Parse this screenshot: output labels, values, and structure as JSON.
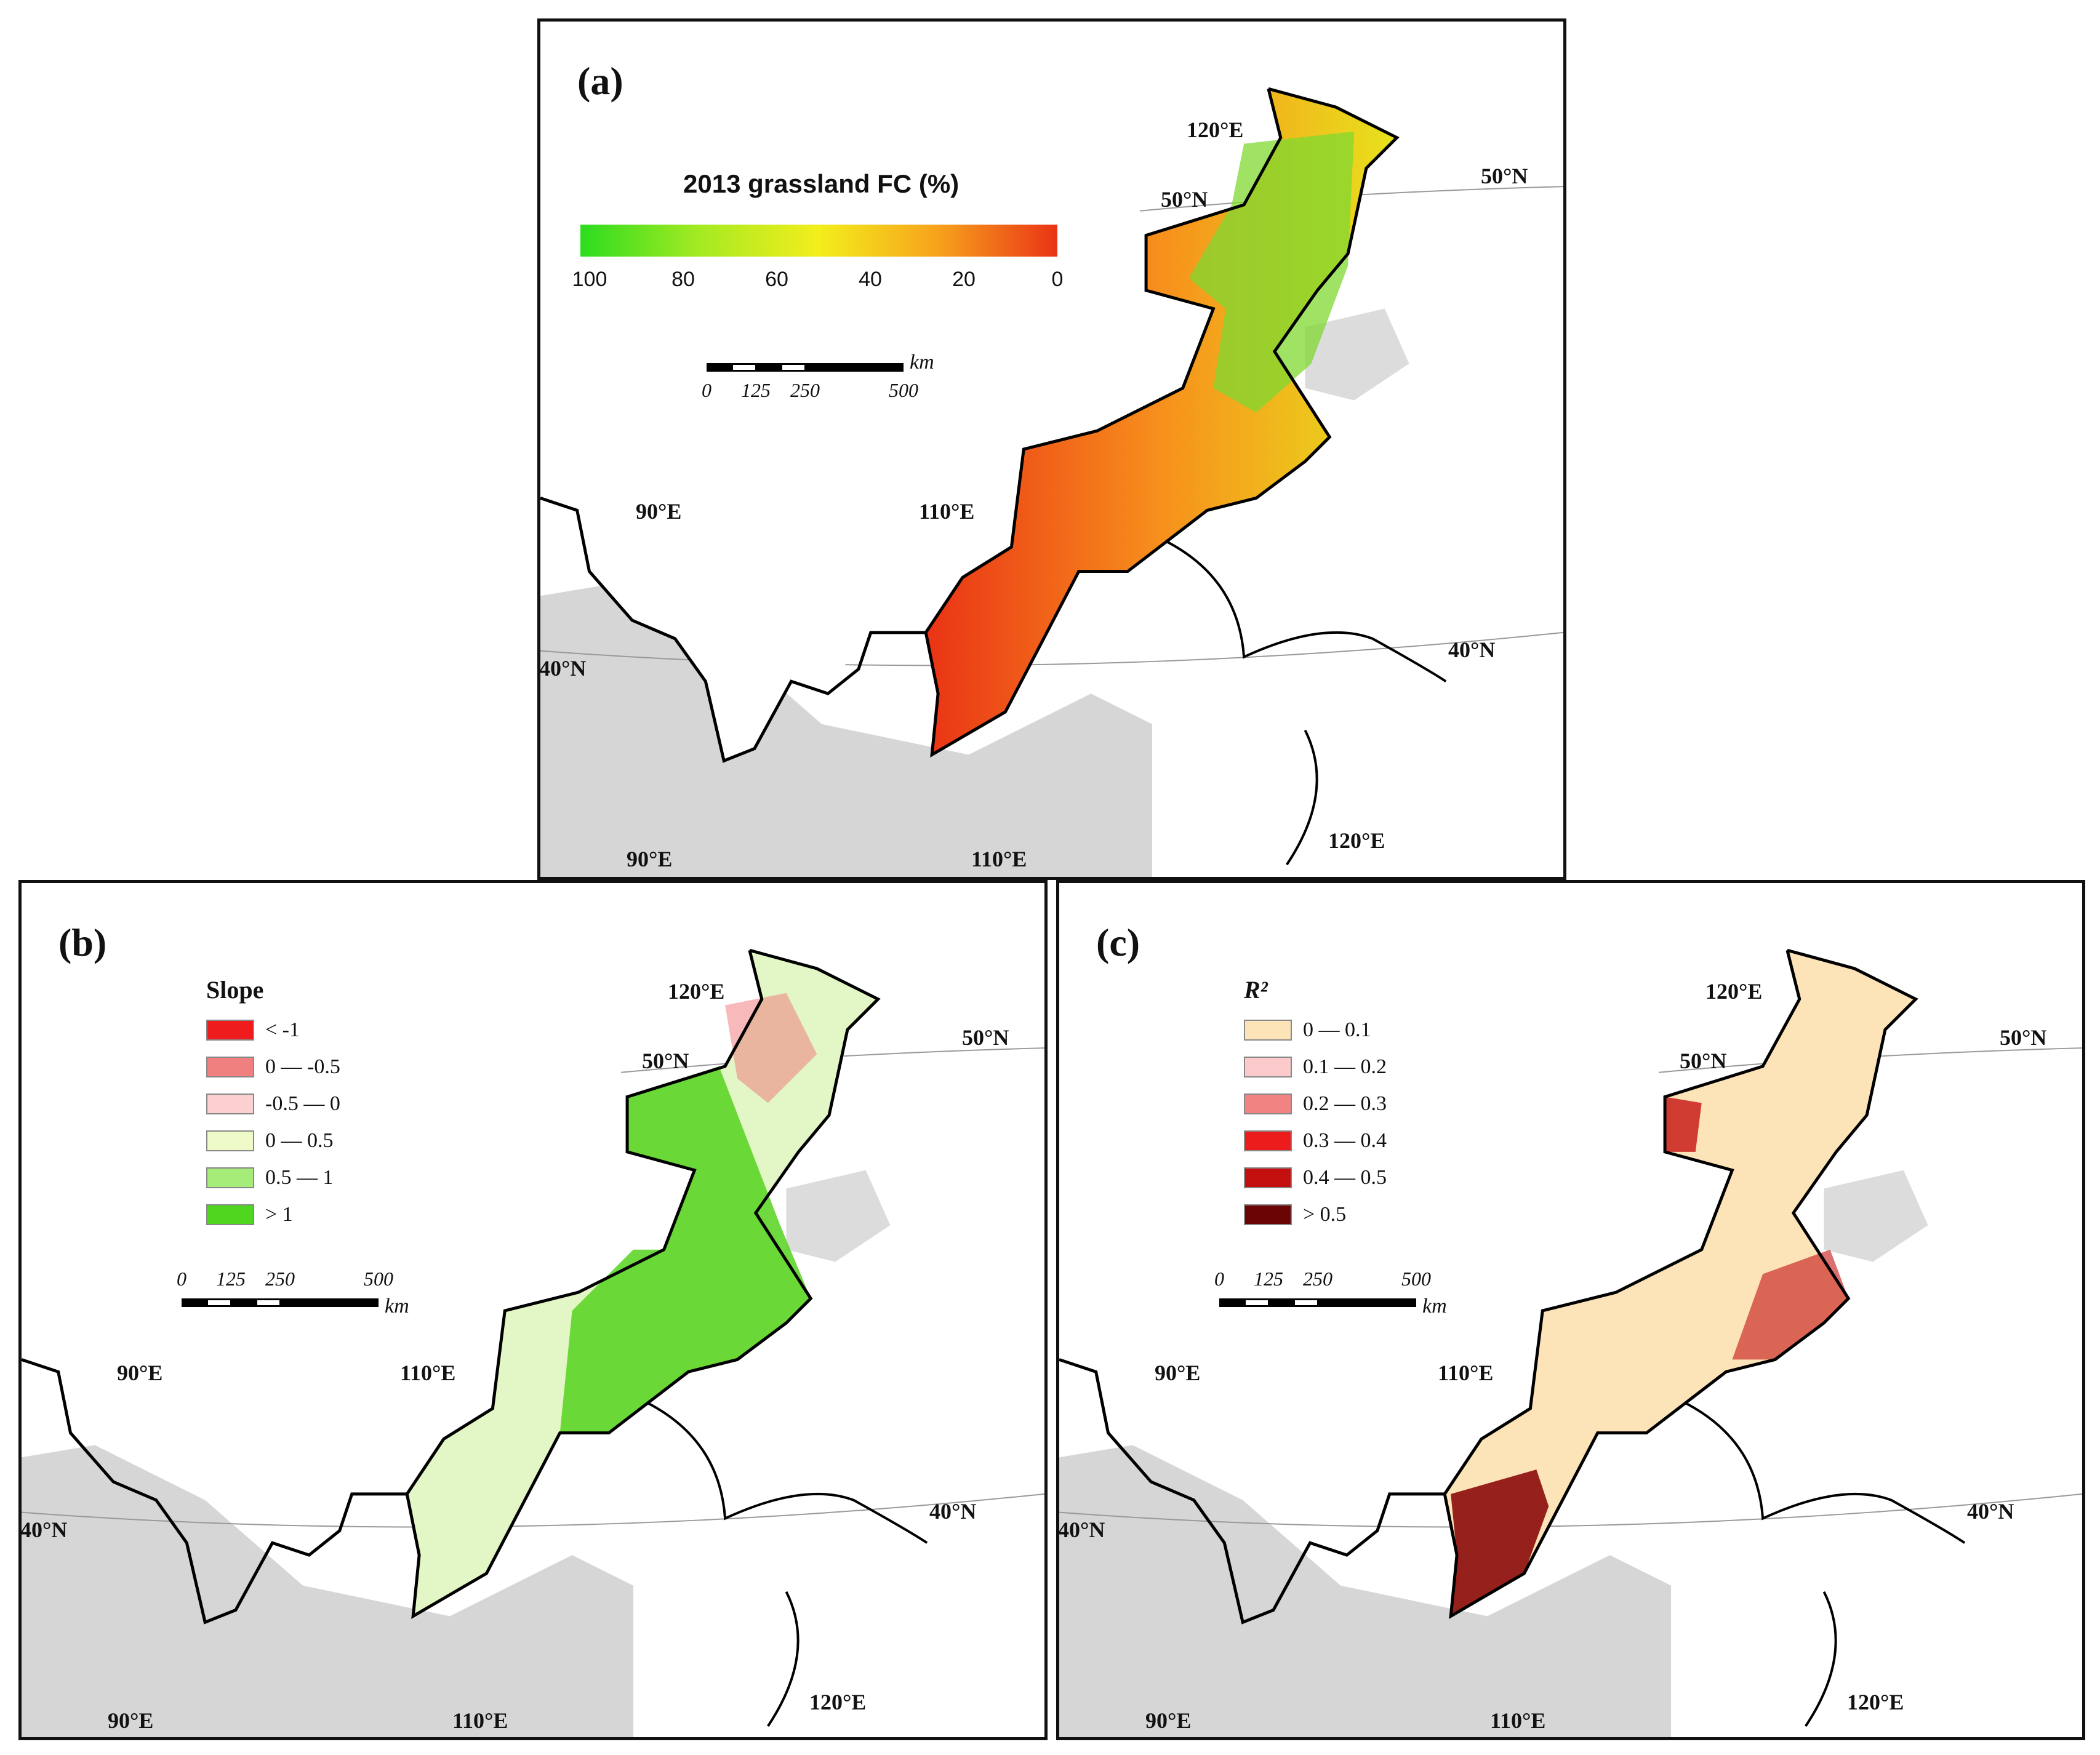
{
  "panels": {
    "a": {
      "label": "(a)",
      "colorbar": {
        "title": "2013 grassland FC (%)",
        "ticks": [
          "100",
          "80",
          "60",
          "40",
          "20",
          "0"
        ],
        "gradient": [
          "#2ddc1f",
          "#a5ea22",
          "#f3ee1c",
          "#f7a21c",
          "#ea3316"
        ]
      },
      "scalebar": {
        "labels": [
          "0",
          "125",
          "250",
          "500"
        ],
        "unit": "km"
      },
      "coords": {
        "lon_top_90": "90°E",
        "lon_top_110": "110°E",
        "lon_top_120": "120°E",
        "lon_bottom_90": "90°E",
        "lon_bottom_110": "110°E",
        "lon_bottom_120": "120°E",
        "lat_50": "50°N",
        "lat_50b": "50°N",
        "lat_40w": "40°N",
        "lat_40e": "40°N"
      }
    },
    "b": {
      "label": "(b)",
      "legend": {
        "title": "Slope",
        "items": [
          {
            "label": "< -1",
            "color": "#ee1c1c"
          },
          {
            "label": "0 — -0.5",
            "color": "#f08080"
          },
          {
            "label": "-0.5 — 0",
            "color": "#fcd0d0"
          },
          {
            "label": "0 — 0.5",
            "color": "#eefac8"
          },
          {
            "label": "0.5 — 1",
            "color": "#a6ec78"
          },
          {
            "label": "> 1",
            "color": "#4fd61e"
          }
        ]
      },
      "scalebar": {
        "labels": [
          "0",
          "125",
          "250",
          "500"
        ],
        "unit": "km"
      },
      "coords": {
        "lon_top_90": "90°E",
        "lon_top_110": "110°E",
        "lon_top_120": "120°E",
        "lon_bottom_90": "90°E",
        "lon_bottom_110": "110°E",
        "lon_bottom_120": "120°E",
        "lat_50": "50°N",
        "lat_50b": "50°N",
        "lat_40w": "40°N",
        "lat_40e": "40°N"
      }
    },
    "c": {
      "label": "(c)",
      "legend": {
        "title": "R²",
        "items": [
          {
            "label": "0 — 0.1",
            "color": "#fde3b8"
          },
          {
            "label": "0.1 — 0.2",
            "color": "#fccaca"
          },
          {
            "label": "0.2 — 0.3",
            "color": "#f28383"
          },
          {
            "label": "0.3 — 0.4",
            "color": "#ec1c1c"
          },
          {
            "label": "0.4 — 0.5",
            "color": "#c40f0f"
          },
          {
            "label": "> 0.5",
            "color": "#6b0505"
          }
        ]
      },
      "scalebar": {
        "labels": [
          "0",
          "125",
          "250",
          "500"
        ],
        "unit": "km"
      },
      "coords": {
        "lon_top_90": "90°E",
        "lon_top_110": "110°E",
        "lon_top_120": "120°E",
        "lon_bottom_90": "90°E",
        "lon_bottom_110": "110°E",
        "lon_bottom_120": "120°E",
        "lat_50": "50°N",
        "lat_50b": "50°N",
        "lat_40w": "40°N",
        "lat_40e": "40°N"
      }
    }
  },
  "colors": {
    "frame": "#111111",
    "boundary": "#000000",
    "background_shading": "#bdbdbd"
  }
}
